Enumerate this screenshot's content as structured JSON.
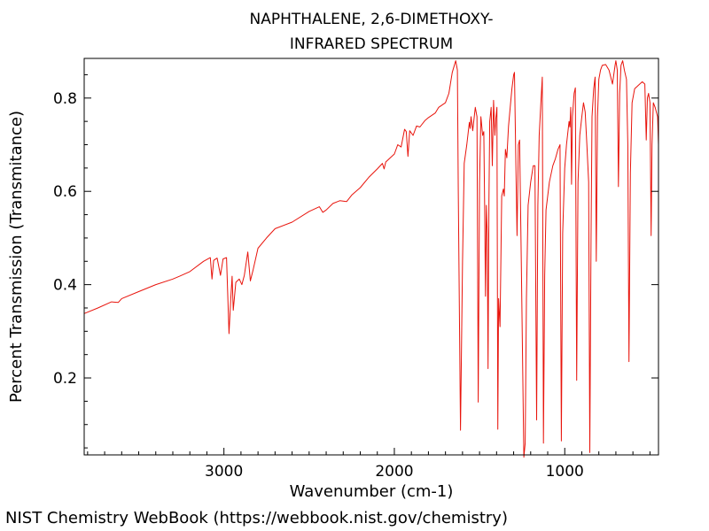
{
  "chart_data": {
    "type": "line",
    "title": "NAPHTHALENE, 2,6-DIMETHOXY-",
    "subtitle": "INFRARED SPECTRUM",
    "xlabel": "Wavenumber (cm-1)",
    "ylabel": "Percent Transmission (Transmitance)",
    "xlim": [
      3820,
      450
    ],
    "ylim": [
      0.035,
      0.885
    ],
    "x_ticks": [
      3000,
      2000,
      1000
    ],
    "y_ticks": [
      0.2,
      0.4,
      0.6,
      0.8
    ],
    "grid": false,
    "legend": "none",
    "series": [
      {
        "color": "#e8140c",
        "points": [
          [
            3820,
            0.338
          ],
          [
            3740,
            0.35
          ],
          [
            3660,
            0.363
          ],
          [
            3620,
            0.362
          ],
          [
            3600,
            0.37
          ],
          [
            3500,
            0.385
          ],
          [
            3400,
            0.4
          ],
          [
            3300,
            0.412
          ],
          [
            3260,
            0.418
          ],
          [
            3200,
            0.428
          ],
          [
            3120,
            0.45
          ],
          [
            3080,
            0.458
          ],
          [
            3070,
            0.412
          ],
          [
            3060,
            0.452
          ],
          [
            3040,
            0.457
          ],
          [
            3020,
            0.42
          ],
          [
            3005,
            0.455
          ],
          [
            2985,
            0.458
          ],
          [
            2970,
            0.295
          ],
          [
            2960,
            0.37
          ],
          [
            2952,
            0.418
          ],
          [
            2945,
            0.345
          ],
          [
            2930,
            0.405
          ],
          [
            2910,
            0.412
          ],
          [
            2895,
            0.4
          ],
          [
            2880,
            0.42
          ],
          [
            2860,
            0.47
          ],
          [
            2845,
            0.408
          ],
          [
            2830,
            0.43
          ],
          [
            2800,
            0.478
          ],
          [
            2750,
            0.5
          ],
          [
            2700,
            0.52
          ],
          [
            2600,
            0.534
          ],
          [
            2500,
            0.557
          ],
          [
            2440,
            0.567
          ],
          [
            2420,
            0.555
          ],
          [
            2400,
            0.56
          ],
          [
            2360,
            0.574
          ],
          [
            2320,
            0.58
          ],
          [
            2280,
            0.578
          ],
          [
            2250,
            0.592
          ],
          [
            2200,
            0.608
          ],
          [
            2150,
            0.63
          ],
          [
            2100,
            0.648
          ],
          [
            2070,
            0.66
          ],
          [
            2060,
            0.648
          ],
          [
            2050,
            0.663
          ],
          [
            2000,
            0.68
          ],
          [
            1980,
            0.7
          ],
          [
            1960,
            0.695
          ],
          [
            1940,
            0.733
          ],
          [
            1930,
            0.728
          ],
          [
            1920,
            0.675
          ],
          [
            1910,
            0.73
          ],
          [
            1890,
            0.72
          ],
          [
            1870,
            0.74
          ],
          [
            1850,
            0.738
          ],
          [
            1820,
            0.752
          ],
          [
            1800,
            0.758
          ],
          [
            1760,
            0.768
          ],
          [
            1740,
            0.78
          ],
          [
            1720,
            0.785
          ],
          [
            1700,
            0.79
          ],
          [
            1680,
            0.81
          ],
          [
            1660,
            0.855
          ],
          [
            1640,
            0.88
          ],
          [
            1630,
            0.86
          ],
          [
            1625,
            0.6
          ],
          [
            1612,
            0.088
          ],
          [
            1600,
            0.45
          ],
          [
            1590,
            0.66
          ],
          [
            1575,
            0.7
          ],
          [
            1560,
            0.748
          ],
          [
            1555,
            0.735
          ],
          [
            1550,
            0.76
          ],
          [
            1540,
            0.73
          ],
          [
            1525,
            0.78
          ],
          [
            1515,
            0.76
          ],
          [
            1508,
            0.148
          ],
          [
            1500,
            0.62
          ],
          [
            1492,
            0.76
          ],
          [
            1482,
            0.72
          ],
          [
            1475,
            0.728
          ],
          [
            1470,
            0.56
          ],
          [
            1465,
            0.375
          ],
          [
            1460,
            0.57
          ],
          [
            1455,
            0.51
          ],
          [
            1450,
            0.22
          ],
          [
            1445,
            0.58
          ],
          [
            1440,
            0.75
          ],
          [
            1432,
            0.78
          ],
          [
            1425,
            0.655
          ],
          [
            1418,
            0.795
          ],
          [
            1410,
            0.72
          ],
          [
            1405,
            0.755
          ],
          [
            1398,
            0.78
          ],
          [
            1393,
            0.09
          ],
          [
            1388,
            0.37
          ],
          [
            1380,
            0.31
          ],
          [
            1370,
            0.59
          ],
          [
            1360,
            0.605
          ],
          [
            1355,
            0.59
          ],
          [
            1348,
            0.69
          ],
          [
            1340,
            0.672
          ],
          [
            1330,
            0.74
          ],
          [
            1320,
            0.78
          ],
          [
            1310,
            0.82
          ],
          [
            1300,
            0.85
          ],
          [
            1295,
            0.855
          ],
          [
            1285,
            0.62
          ],
          [
            1280,
            0.505
          ],
          [
            1272,
            0.7
          ],
          [
            1265,
            0.71
          ],
          [
            1255,
            0.45
          ],
          [
            1240,
            0.03
          ],
          [
            1232,
            0.06
          ],
          [
            1225,
            0.37
          ],
          [
            1215,
            0.57
          ],
          [
            1200,
            0.62
          ],
          [
            1185,
            0.655
          ],
          [
            1175,
            0.655
          ],
          [
            1165,
            0.11
          ],
          [
            1158,
            0.57
          ],
          [
            1150,
            0.72
          ],
          [
            1140,
            0.79
          ],
          [
            1132,
            0.845
          ],
          [
            1125,
            0.06
          ],
          [
            1118,
            0.42
          ],
          [
            1110,
            0.56
          ],
          [
            1090,
            0.62
          ],
          [
            1070,
            0.655
          ],
          [
            1055,
            0.67
          ],
          [
            1040,
            0.69
          ],
          [
            1028,
            0.7
          ],
          [
            1020,
            0.065
          ],
          [
            1012,
            0.51
          ],
          [
            1000,
            0.65
          ],
          [
            990,
            0.7
          ],
          [
            975,
            0.75
          ],
          [
            970,
            0.738
          ],
          [
            965,
            0.78
          ],
          [
            960,
            0.615
          ],
          [
            955,
            0.76
          ],
          [
            945,
            0.81
          ],
          [
            938,
            0.822
          ],
          [
            930,
            0.195
          ],
          [
            922,
            0.62
          ],
          [
            912,
            0.72
          ],
          [
            900,
            0.76
          ],
          [
            890,
            0.79
          ],
          [
            880,
            0.77
          ],
          [
            870,
            0.7
          ],
          [
            860,
            0.62
          ],
          [
            853,
            0.04
          ],
          [
            846,
            0.5
          ],
          [
            840,
            0.76
          ],
          [
            830,
            0.82
          ],
          [
            822,
            0.845
          ],
          [
            815,
            0.45
          ],
          [
            808,
            0.76
          ],
          [
            800,
            0.84
          ],
          [
            790,
            0.86
          ],
          [
            780,
            0.87
          ],
          [
            760,
            0.872
          ],
          [
            740,
            0.86
          ],
          [
            720,
            0.83
          ],
          [
            705,
            0.87
          ],
          [
            700,
            0.88
          ],
          [
            692,
            0.86
          ],
          [
            685,
            0.61
          ],
          [
            678,
            0.81
          ],
          [
            670,
            0.87
          ],
          [
            660,
            0.88
          ],
          [
            650,
            0.86
          ],
          [
            638,
            0.84
          ],
          [
            630,
            0.7
          ],
          [
            623,
            0.235
          ],
          [
            615,
            0.64
          ],
          [
            605,
            0.79
          ],
          [
            590,
            0.82
          ],
          [
            575,
            0.825
          ],
          [
            560,
            0.83
          ],
          [
            545,
            0.835
          ],
          [
            530,
            0.83
          ],
          [
            522,
            0.71
          ],
          [
            515,
            0.8
          ],
          [
            508,
            0.81
          ],
          [
            500,
            0.79
          ],
          [
            493,
            0.505
          ],
          [
            488,
            0.7
          ],
          [
            480,
            0.79
          ],
          [
            470,
            0.78
          ],
          [
            455,
            0.76
          ],
          [
            450,
            0.7
          ]
        ]
      }
    ]
  },
  "footer": "NIST Chemistry WebBook (https://webbook.nist.gov/chemistry)"
}
